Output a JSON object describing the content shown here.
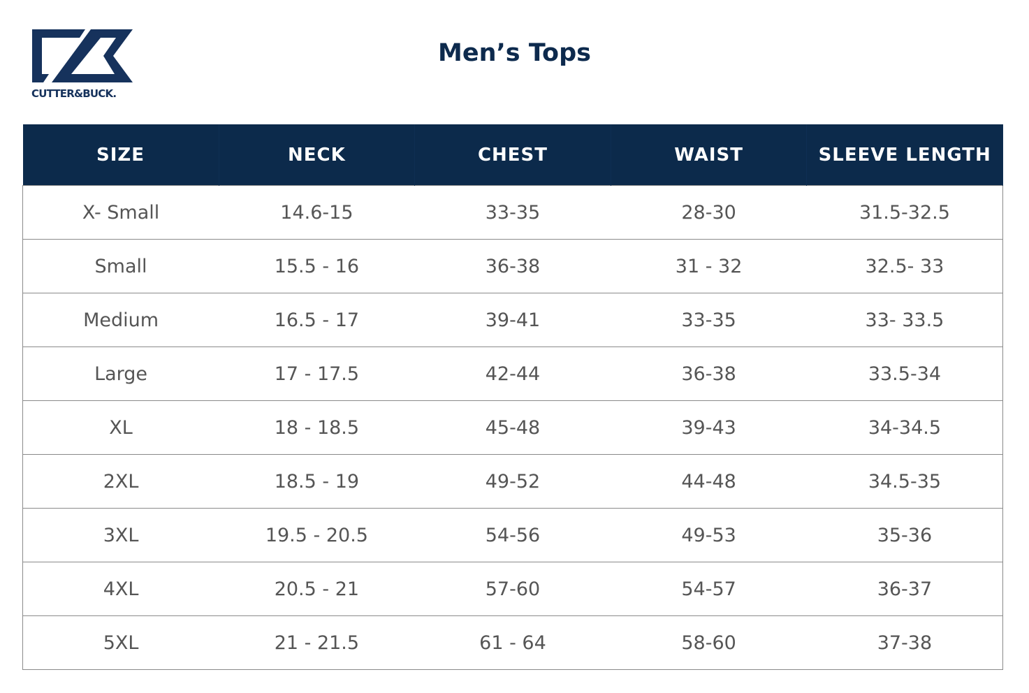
{
  "brand": {
    "name": "CUTTER & BUCK",
    "logo_color": "#16325c"
  },
  "title": "Men’s Tops",
  "colors": {
    "header_bg": "#0c2a4b",
    "header_text": "#ffffff",
    "cell_text": "#555555"
  },
  "table": {
    "headers": [
      "SIZE",
      "NECK",
      "CHEST",
      "WAIST",
      "SLEEVE LENGTH"
    ],
    "rows": [
      [
        "X- Small",
        "14.6-15",
        "33-35",
        "28-30",
        "31.5-32.5"
      ],
      [
        "Small",
        "15.5 - 16",
        "36-38",
        "31 - 32",
        "32.5- 33"
      ],
      [
        "Medium",
        "16.5 - 17",
        "39-41",
        "33-35",
        "33- 33.5"
      ],
      [
        "Large",
        "17 - 17.5",
        "42-44",
        "36-38",
        "33.5-34"
      ],
      [
        "XL",
        "18 - 18.5",
        "45-48",
        "39-43",
        "34-34.5"
      ],
      [
        "2XL",
        "18.5 - 19",
        "49-52",
        "44-48",
        "34.5-35"
      ],
      [
        "3XL",
        "19.5 - 20.5",
        "54-56",
        "49-53",
        "35-36"
      ],
      [
        "4XL",
        "20.5 - 21",
        "57-60",
        "54-57",
        "36-37"
      ],
      [
        "5XL",
        "21 - 21.5",
        "61 - 64",
        "58-60",
        "37-38"
      ]
    ]
  }
}
